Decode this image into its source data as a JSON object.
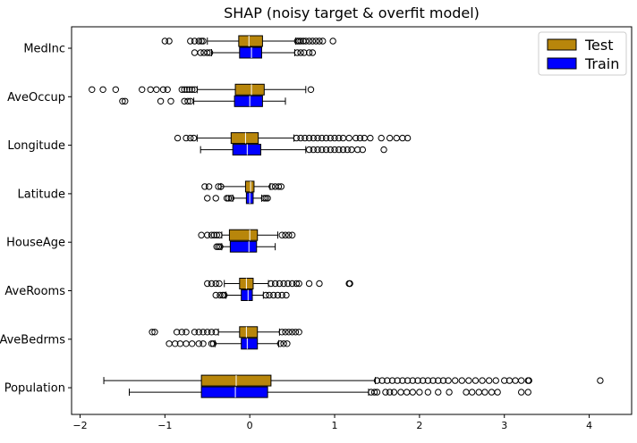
{
  "chart_data": {
    "type": "boxplot",
    "title": "SHAP (noisy target & overfit model)",
    "orientation": "horizontal",
    "xlabel": "",
    "ylabel": "",
    "xlim": [
      -2.1,
      4.5
    ],
    "xticks": [
      -2,
      -1,
      0,
      1,
      2,
      3,
      4
    ],
    "grid": false,
    "legend_position": "top-right",
    "categories": [
      "MedInc",
      "AveOccup",
      "Longitude",
      "Latitude",
      "HouseAge",
      "AveRooms",
      "AveBedrms",
      "Population"
    ],
    "series": [
      {
        "name": "Test",
        "color": "#b8860b",
        "boxes": [
          {
            "whislo": -0.5,
            "q1": -0.13,
            "med": -0.01,
            "q3": 0.15,
            "whishi": 0.54,
            "fliers": [
              -1.0,
              -0.95,
              -0.7,
              -0.65,
              -0.6,
              -0.57,
              -0.55,
              0.56,
              0.58,
              0.6,
              0.63,
              0.66,
              0.7,
              0.74,
              0.78,
              0.82,
              0.86,
              0.98
            ]
          },
          {
            "whislo": -0.62,
            "q1": -0.17,
            "med": 0.02,
            "q3": 0.17,
            "whishi": 0.66,
            "fliers": [
              -1.86,
              -1.73,
              -1.58,
              -1.27,
              -1.17,
              -1.1,
              -1.02,
              -0.97,
              -0.8,
              -0.77,
              -0.74,
              -0.71,
              -0.68,
              -0.65,
              0.72
            ]
          },
          {
            "whislo": -0.62,
            "q1": -0.22,
            "med": -0.05,
            "q3": 0.1,
            "whishi": 0.52,
            "fliers": [
              -0.85,
              -0.75,
              -0.7,
              -0.66,
              0.55,
              0.6,
              0.65,
              0.7,
              0.75,
              0.8,
              0.85,
              0.9,
              0.95,
              1.0,
              1.05,
              1.1,
              1.17,
              1.25,
              1.3,
              1.35,
              1.42,
              1.55,
              1.65,
              1.73,
              1.8,
              1.86
            ]
          },
          {
            "whislo": -0.34,
            "q1": -0.05,
            "med": 0.01,
            "q3": 0.05,
            "whishi": 0.24,
            "fliers": [
              -0.53,
              -0.48,
              -0.37,
              -0.34,
              0.26,
              0.3,
              0.34,
              0.37
            ]
          },
          {
            "whislo": -0.33,
            "q1": -0.24,
            "med": 0.0,
            "q3": 0.09,
            "whishi": 0.33,
            "fliers": [
              -0.57,
              -0.5,
              -0.45,
              -0.42,
              -0.39,
              -0.36,
              0.38,
              0.42,
              0.46,
              0.5
            ]
          },
          {
            "whislo": -0.3,
            "q1": -0.12,
            "med": -0.04,
            "q3": 0.04,
            "whishi": 0.22,
            "fliers": [
              -0.5,
              -0.45,
              -0.4,
              -0.36,
              0.25,
              0.3,
              0.35,
              0.4,
              0.45,
              0.5,
              0.55,
              0.58,
              0.7,
              0.82,
              1.17,
              1.18
            ]
          },
          {
            "whislo": -0.37,
            "q1": -0.12,
            "med": -0.04,
            "q3": 0.09,
            "whishi": 0.35,
            "fliers": [
              -1.15,
              -1.12,
              -0.86,
              -0.8,
              -0.75,
              -0.65,
              -0.6,
              -0.55,
              -0.5,
              -0.45,
              -0.4,
              0.38,
              0.42,
              0.46,
              0.5,
              0.54,
              0.58
            ]
          },
          {
            "whislo": -1.72,
            "q1": -0.57,
            "med": -0.16,
            "q3": 0.25,
            "whishi": 1.48,
            "fliers": [
              1.5,
              1.56,
              1.62,
              1.68,
              1.74,
              1.8,
              1.86,
              1.92,
              1.98,
              2.04,
              2.1,
              2.16,
              2.22,
              2.28,
              2.34,
              2.42,
              2.5,
              2.58,
              2.66,
              2.74,
              2.82,
              2.9,
              3.0,
              3.06,
              3.13,
              3.2,
              3.28,
              3.29,
              4.13
            ]
          }
        ]
      },
      {
        "name": "Train",
        "color": "#0000ff",
        "boxes": [
          {
            "whislo": -0.45,
            "q1": -0.12,
            "med": 0.02,
            "q3": 0.14,
            "whishi": 0.53,
            "fliers": [
              -0.65,
              -0.58,
              -0.54,
              -0.5,
              -0.47,
              0.56,
              0.6,
              0.64,
              0.7,
              0.74
            ]
          },
          {
            "whislo": -0.66,
            "q1": -0.18,
            "med": 0.0,
            "q3": 0.15,
            "whishi": 0.42,
            "fliers": [
              -1.5,
              -1.47,
              -1.05,
              -0.93,
              -0.77,
              -0.73,
              -0.7
            ]
          },
          {
            "whislo": -0.58,
            "q1": -0.2,
            "med": -0.03,
            "q3": 0.13,
            "whishi": 0.66,
            "fliers": [
              0.7,
              0.75,
              0.8,
              0.85,
              0.9,
              0.95,
              1.0,
              1.05,
              1.1,
              1.15,
              1.2,
              1.27,
              1.33,
              1.58
            ]
          },
          {
            "whislo": -0.2,
            "q1": -0.04,
            "med": 0.0,
            "q3": 0.04,
            "whishi": 0.14,
            "fliers": [
              -0.5,
              -0.4,
              -0.27,
              -0.25,
              -0.22,
              0.17,
              0.19,
              0.21
            ]
          },
          {
            "whislo": -0.33,
            "q1": -0.23,
            "med": -0.01,
            "q3": 0.08,
            "whishi": 0.3,
            "fliers": [
              -0.39,
              -0.37,
              -0.35
            ]
          },
          {
            "whislo": -0.28,
            "q1": -0.1,
            "med": -0.02,
            "q3": 0.03,
            "whishi": 0.16,
            "fliers": [
              -0.4,
              -0.35,
              -0.32,
              -0.3,
              0.19,
              0.23,
              0.28,
              0.33,
              0.38,
              0.43
            ]
          },
          {
            "whislo": -0.41,
            "q1": -0.1,
            "med": -0.03,
            "q3": 0.09,
            "whishi": 0.34,
            "fliers": [
              -0.95,
              -0.88,
              -0.82,
              -0.75,
              -0.68,
              -0.6,
              -0.55,
              -0.45,
              -0.43,
              0.36,
              0.4,
              0.44
            ]
          },
          {
            "whislo": -1.42,
            "q1": -0.57,
            "med": -0.17,
            "q3": 0.21,
            "whishi": 1.4,
            "fliers": [
              1.43,
              1.47,
              1.5,
              1.6,
              1.65,
              1.7,
              1.78,
              1.85,
              1.92,
              2.0,
              2.1,
              2.22,
              2.35,
              2.55,
              2.62,
              2.7,
              2.77,
              2.85,
              2.92,
              3.2,
              3.28
            ]
          }
        ]
      }
    ]
  }
}
